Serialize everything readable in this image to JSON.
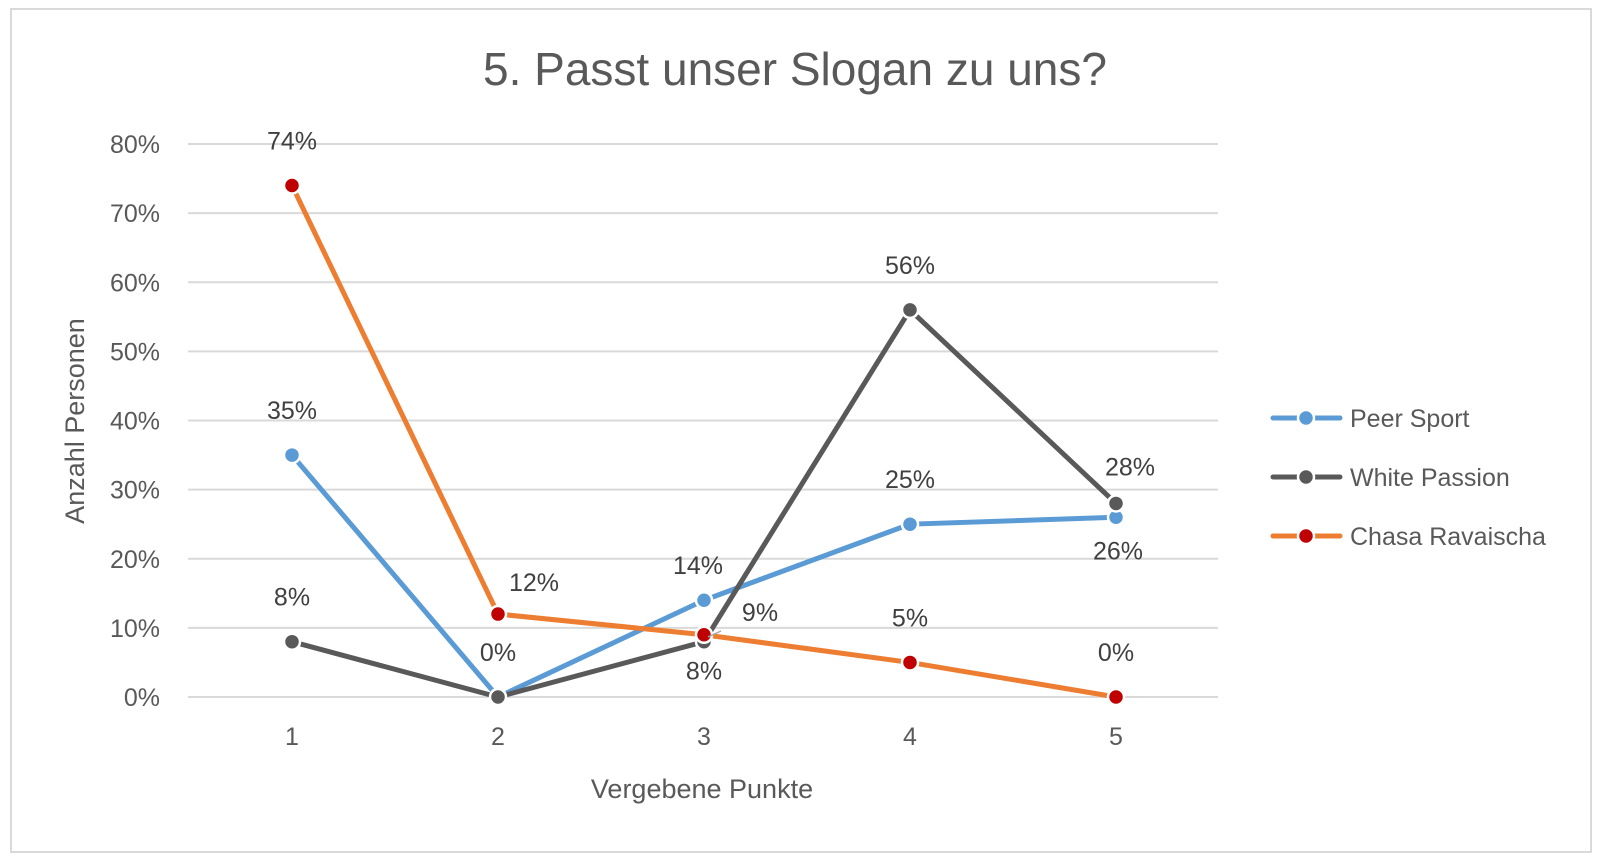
{
  "chart_data": {
    "type": "line",
    "title": "5. Passt unser Slogan zu uns?",
    "xlabel": "Vergebene Punkte",
    "ylabel": "Anzahl Personen",
    "categories": [
      "1",
      "2",
      "3",
      "4",
      "5"
    ],
    "ylim": [
      0,
      80
    ],
    "yticks": [
      "0%",
      "10%",
      "20%",
      "30%",
      "40%",
      "50%",
      "60%",
      "70%",
      "80%"
    ],
    "legend_position": "right",
    "grid": true,
    "series": [
      {
        "name": "Peer Sport",
        "color": "#5b9bd5",
        "marker_fill": "#5b9bd5",
        "values": [
          35,
          0,
          14,
          25,
          26
        ],
        "labels": [
          "35%",
          "",
          "14%",
          "25%",
          "26%"
        ]
      },
      {
        "name": "White Passion",
        "color": "#595959",
        "marker_fill": "#595959",
        "values": [
          8,
          0,
          8,
          56,
          28
        ],
        "labels": [
          "8%",
          "0%",
          "8%",
          "56%",
          "28%"
        ]
      },
      {
        "name": "Chasa Ravaischa",
        "color": "#ed7d31",
        "marker_fill": "#c00000",
        "values": [
          74,
          12,
          9,
          5,
          0
        ],
        "labels": [
          "74%",
          "12%",
          "9%",
          "5%",
          "0%"
        ]
      }
    ]
  }
}
